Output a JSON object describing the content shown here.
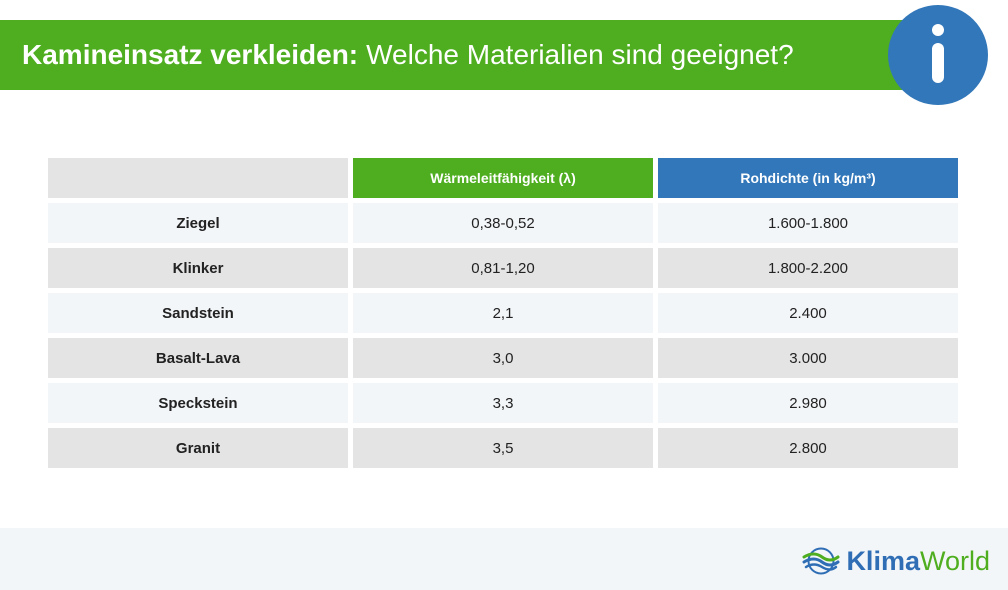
{
  "header": {
    "title_bold": "Kamineinsatz verkleiden:",
    "title_rest": "Welche Materialien sind geeignet?",
    "icon": "info-icon"
  },
  "table": {
    "headers": [
      "",
      "Wärmeleitfähigkeit (λ)",
      "Rohdichte (in kg/m³)"
    ],
    "rows": [
      {
        "material": "Ziegel",
        "lambda": "0,38-0,52",
        "density": "1.600-1.800"
      },
      {
        "material": "Klinker",
        "lambda": "0,81-1,20",
        "density": "1.800-2.200"
      },
      {
        "material": "Sandstein",
        "lambda": "2,1",
        "density": "2.400"
      },
      {
        "material": "Basalt-Lava",
        "lambda": "3,0",
        "density": "3.000"
      },
      {
        "material": "Speckstein",
        "lambda": "3,3",
        "density": "2.980"
      },
      {
        "material": "Granit",
        "lambda": "3,5",
        "density": "2.800"
      }
    ]
  },
  "footer": {
    "logo_part1": "Klima",
    "logo_part2": "World",
    "logo_icon": "waves-logo-icon"
  },
  "colors": {
    "green": "#4fae20",
    "blue": "#3277b9",
    "row_light": "#f3f6f9",
    "row_dark": "#e4e4e4"
  }
}
